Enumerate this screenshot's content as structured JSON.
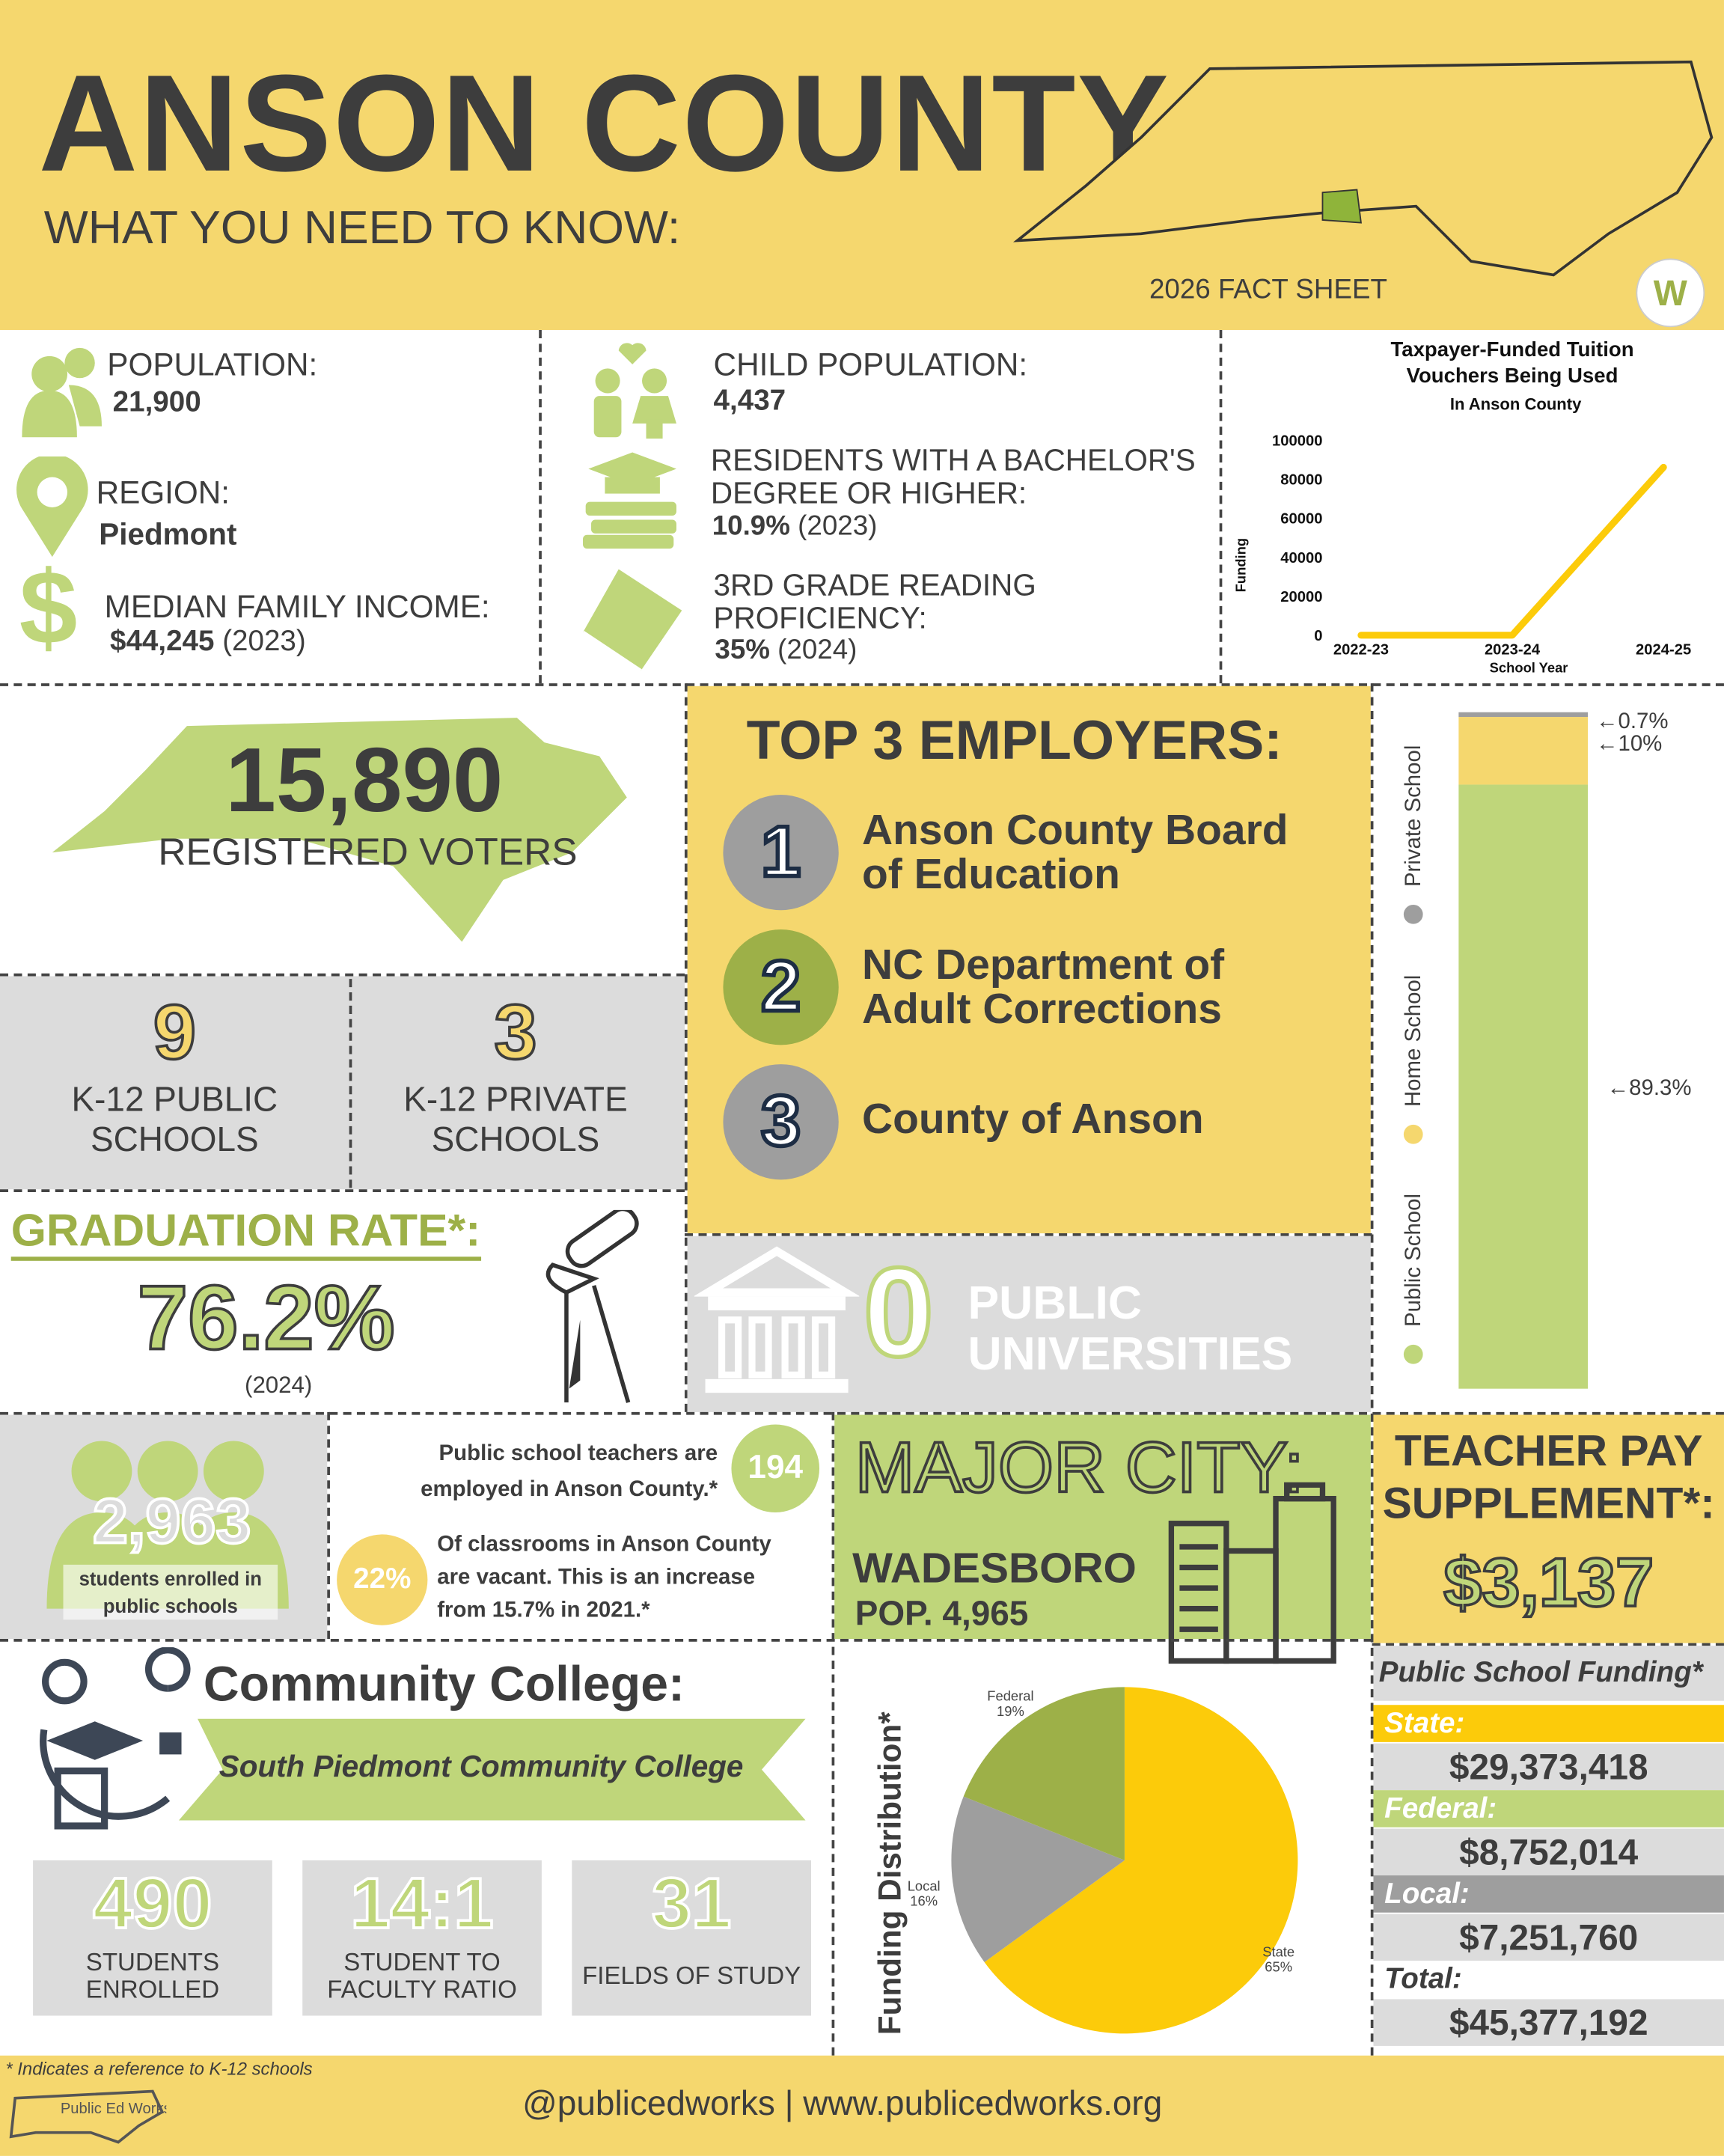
{
  "header": {
    "title": "ANSON COUNTY",
    "subtitle": "WHAT YOU NEED TO KNOW:",
    "fact_sheet": "2026 FACT SHEET"
  },
  "stats": {
    "population_label": "POPULATION:",
    "population": "21,900",
    "region_label": "REGION:",
    "region": "Piedmont",
    "income_label": "MEDIAN FAMILY INCOME:",
    "income": "$44,245",
    "income_year": "(2023)",
    "child_label": "CHILD POPULATION:",
    "child": "4,437",
    "bachelor_label_1": "RESIDENTS WITH A BACHELOR'S",
    "bachelor_label_2": "DEGREE OR HIGHER:",
    "bachelor": "10.9%",
    "bachelor_year": "(2023)",
    "reading_label_1": "3RD GRADE READING",
    "reading_label_2": "PROFICIENCY:",
    "reading": "35%",
    "reading_year": "(2024)"
  },
  "chart_data": [
    {
      "type": "line",
      "title": "Taxpayer-Funded Tuition Vouchers Being Used",
      "subtitle": "In Anson County",
      "xlabel": "School Year",
      "ylabel": "Funding",
      "categories": [
        "2022-23",
        "2023-24",
        "2024-25"
      ],
      "values": [
        0,
        0,
        86000
      ],
      "ylim": [
        0,
        100000
      ],
      "yticks": [
        "100000",
        "80000",
        "60000",
        "40000",
        "20000",
        "0"
      ],
      "color": "#fccb0a"
    },
    {
      "type": "bar",
      "stacked": true,
      "categories": [
        "Public School",
        "Home School",
        "Private School"
      ],
      "values": [
        89.3,
        10,
        0.7
      ],
      "labels": [
        "←89.3%",
        "←10%",
        "←0.7%"
      ],
      "colors": [
        "#bfd67a",
        "#f5d76e",
        "#9e9e9e"
      ]
    },
    {
      "type": "pie",
      "title": "Funding Distribution*",
      "categories": [
        "State",
        "Local",
        "Federal"
      ],
      "values": [
        65,
        16,
        19
      ],
      "labels": [
        "65%",
        "16%",
        "19%"
      ],
      "colors": [
        "#fccb0a",
        "#9e9e9e",
        "#9db048"
      ]
    }
  ],
  "voters": {
    "count": "15,890",
    "label": "REGISTERED VOTERS"
  },
  "schools": {
    "public_count": "9",
    "public_label_1": "K-12 PUBLIC",
    "public_label_2": "SCHOOLS",
    "private_count": "3",
    "private_label_1": "K-12 PRIVATE",
    "private_label_2": "SCHOOLS"
  },
  "graduation": {
    "label": "GRADUATION RATE*:",
    "rate": "76.2%",
    "year": "(2024)"
  },
  "employers": {
    "title": "TOP 3 EMPLOYERS:",
    "items": [
      {
        "num": "1",
        "line1": "Anson County Board",
        "line2": "of Education"
      },
      {
        "num": "2",
        "line1": "NC Department of",
        "line2": "Adult Corrections"
      },
      {
        "num": "3",
        "line1": "County of Anson",
        "line2": ""
      }
    ]
  },
  "universities": {
    "count": "0",
    "line1": "PUBLIC",
    "line2": "UNIVERSITIES"
  },
  "students": {
    "count": "2,963",
    "line1": "students enrolled in",
    "line2": "public schools"
  },
  "teachers": {
    "text_1": "Public school teachers are",
    "text_2": "employed in Anson County.*",
    "count": "194",
    "vacant_pct": "22%",
    "vacant_1": "Of classrooms in Anson County",
    "vacant_2": "are vacant. This is an increase",
    "vacant_3": "from 15.7% in 2021.*"
  },
  "city": {
    "label": "MAJOR CITY:",
    "name": "WADESBORO",
    "pop": "POP. 4,965"
  },
  "teacher_pay": {
    "line1": "TEACHER PAY",
    "line2": "SUPPLEMENT*:",
    "amount": "$3,137"
  },
  "college": {
    "title": "Community College:",
    "name": "South Piedmont Community College",
    "stats": [
      {
        "value": "490",
        "l1": "STUDENTS",
        "l2": "ENROLLED"
      },
      {
        "value": "14:1",
        "l1": "STUDENT TO",
        "l2": "FACULTY RATIO"
      },
      {
        "value": "31",
        "l1": "FIELDS OF STUDY",
        "l2": ""
      }
    ]
  },
  "funding": {
    "title": "Public School Funding*",
    "state_label": "State:",
    "state": "$29,373,418",
    "federal_label": "Federal:",
    "federal": "$8,752,014",
    "local_label": "Local:",
    "local": "$7,251,760",
    "total_label": "Total:",
    "total": "$45,377,192"
  },
  "footer": {
    "note": "* Indicates a reference to K-12 schools",
    "contact": "@publicedworks | www.publicedworks.org",
    "logo_text": "Public Ed Works"
  }
}
